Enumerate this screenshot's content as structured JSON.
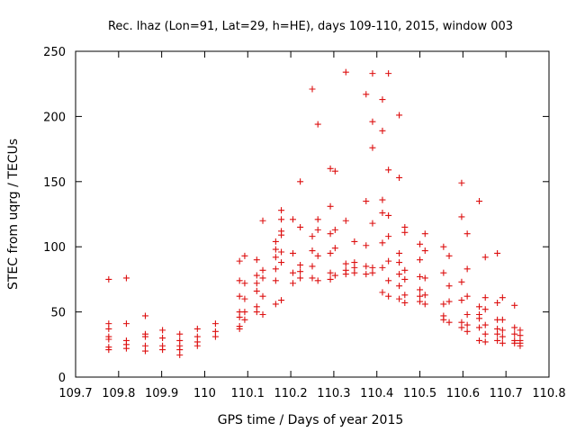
{
  "chart_data": {
    "type": "scatter",
    "title": "Rec. lhaz (Lon=91, Lat=29, h=HE), days 109-110, 2015, window 003",
    "xlabel": "GPS time / Days of year 2015",
    "ylabel": "STEC from uqrg / TECUs",
    "xlim": [
      109.7,
      110.8
    ],
    "ylim": [
      0,
      250
    ],
    "xticks": [
      109.7,
      109.8,
      109.9,
      110,
      110.1,
      110.2,
      110.3,
      110.4,
      110.5,
      110.6,
      110.7,
      110.8
    ],
    "xtick_labels": [
      "109.7",
      "109.8",
      "109.9",
      "110",
      "110.1",
      "110.2",
      "110.3",
      "110.4",
      "110.5",
      "110.6",
      "110.7",
      "110.8"
    ],
    "yticks": [
      0,
      50,
      100,
      150,
      200,
      250
    ],
    "ytick_labels": [
      "0",
      "50",
      "100",
      "150",
      "200",
      "250"
    ],
    "grid": false,
    "legend": "none",
    "marker": "+",
    "color": "#dd1010",
    "series": [
      {
        "points": [
          [
            109.777,
            75
          ],
          [
            109.777,
            41
          ],
          [
            109.777,
            37
          ],
          [
            109.777,
            31
          ],
          [
            109.777,
            29
          ],
          [
            109.777,
            23
          ],
          [
            109.777,
            21
          ],
          [
            109.818,
            76
          ],
          [
            109.818,
            41
          ],
          [
            109.818,
            28
          ],
          [
            109.818,
            25
          ],
          [
            109.818,
            22
          ],
          [
            109.862,
            47
          ],
          [
            109.862,
            33
          ],
          [
            109.862,
            31
          ],
          [
            109.862,
            24
          ],
          [
            109.862,
            20
          ],
          [
            109.902,
            36
          ],
          [
            109.902,
            30
          ],
          [
            109.902,
            24
          ],
          [
            109.902,
            21
          ],
          [
            109.942,
            33
          ],
          [
            109.942,
            28
          ],
          [
            109.942,
            24
          ],
          [
            109.942,
            21
          ],
          [
            109.942,
            17
          ],
          [
            109.983,
            37
          ],
          [
            109.983,
            31
          ],
          [
            109.983,
            27
          ],
          [
            109.983,
            24
          ],
          [
            110.025,
            41
          ],
          [
            110.025,
            35
          ],
          [
            110.025,
            31
          ],
          [
            110.081,
            89
          ],
          [
            110.081,
            74
          ],
          [
            110.081,
            62
          ],
          [
            110.081,
            50
          ],
          [
            110.081,
            46
          ],
          [
            110.081,
            39
          ],
          [
            110.081,
            37
          ],
          [
            110.093,
            93
          ],
          [
            110.093,
            72
          ],
          [
            110.093,
            60
          ],
          [
            110.093,
            50
          ],
          [
            110.093,
            44
          ],
          [
            110.121,
            90
          ],
          [
            110.121,
            78
          ],
          [
            110.121,
            72
          ],
          [
            110.121,
            66
          ],
          [
            110.121,
            54
          ],
          [
            110.121,
            50
          ],
          [
            110.135,
            120
          ],
          [
            110.135,
            82
          ],
          [
            110.135,
            76
          ],
          [
            110.135,
            62
          ],
          [
            110.135,
            48
          ],
          [
            110.165,
            104
          ],
          [
            110.165,
            98
          ],
          [
            110.165,
            92
          ],
          [
            110.165,
            83
          ],
          [
            110.165,
            74
          ],
          [
            110.165,
            56
          ],
          [
            110.178,
            128
          ],
          [
            110.178,
            121
          ],
          [
            110.178,
            112
          ],
          [
            110.178,
            109
          ],
          [
            110.178,
            96
          ],
          [
            110.178,
            88
          ],
          [
            110.178,
            59
          ],
          [
            110.205,
            121
          ],
          [
            110.205,
            95
          ],
          [
            110.205,
            80
          ],
          [
            110.205,
            72
          ],
          [
            110.222,
            150
          ],
          [
            110.222,
            115
          ],
          [
            110.222,
            86
          ],
          [
            110.222,
            81
          ],
          [
            110.222,
            76
          ],
          [
            110.25,
            221
          ],
          [
            110.25,
            108
          ],
          [
            110.25,
            97
          ],
          [
            110.25,
            85
          ],
          [
            110.25,
            76
          ],
          [
            110.263,
            194
          ],
          [
            110.263,
            121
          ],
          [
            110.263,
            113
          ],
          [
            110.263,
            93
          ],
          [
            110.263,
            74
          ],
          [
            110.292,
            160
          ],
          [
            110.292,
            131
          ],
          [
            110.292,
            110
          ],
          [
            110.292,
            95
          ],
          [
            110.292,
            80
          ],
          [
            110.292,
            75
          ],
          [
            110.303,
            158
          ],
          [
            110.303,
            113
          ],
          [
            110.303,
            99
          ],
          [
            110.303,
            78
          ],
          [
            110.328,
            234
          ],
          [
            110.328,
            120
          ],
          [
            110.328,
            87
          ],
          [
            110.328,
            82
          ],
          [
            110.328,
            79
          ],
          [
            110.348,
            104
          ],
          [
            110.348,
            88
          ],
          [
            110.348,
            84
          ],
          [
            110.348,
            80
          ],
          [
            110.375,
            217
          ],
          [
            110.375,
            135
          ],
          [
            110.375,
            101
          ],
          [
            110.375,
            85
          ],
          [
            110.375,
            79
          ],
          [
            110.39,
            233
          ],
          [
            110.39,
            196
          ],
          [
            110.39,
            176
          ],
          [
            110.39,
            118
          ],
          [
            110.39,
            84
          ],
          [
            110.39,
            80
          ],
          [
            110.413,
            213
          ],
          [
            110.413,
            189
          ],
          [
            110.413,
            136
          ],
          [
            110.413,
            126
          ],
          [
            110.413,
            103
          ],
          [
            110.413,
            84
          ],
          [
            110.413,
            65
          ],
          [
            110.427,
            233
          ],
          [
            110.427,
            159
          ],
          [
            110.427,
            124
          ],
          [
            110.427,
            108
          ],
          [
            110.427,
            89
          ],
          [
            110.427,
            74
          ],
          [
            110.427,
            62
          ],
          [
            110.452,
            201
          ],
          [
            110.452,
            153
          ],
          [
            110.452,
            95
          ],
          [
            110.452,
            88
          ],
          [
            110.452,
            79
          ],
          [
            110.452,
            70
          ],
          [
            110.452,
            60
          ],
          [
            110.465,
            115
          ],
          [
            110.465,
            111
          ],
          [
            110.465,
            82
          ],
          [
            110.465,
            75
          ],
          [
            110.465,
            63
          ],
          [
            110.465,
            57
          ],
          [
            110.5,
            102
          ],
          [
            110.5,
            90
          ],
          [
            110.5,
            77
          ],
          [
            110.5,
            67
          ],
          [
            110.5,
            62
          ],
          [
            110.5,
            58
          ],
          [
            110.512,
            110
          ],
          [
            110.512,
            97
          ],
          [
            110.512,
            76
          ],
          [
            110.512,
            63
          ],
          [
            110.512,
            56
          ],
          [
            110.555,
            100
          ],
          [
            110.555,
            80
          ],
          [
            110.555,
            56
          ],
          [
            110.555,
            47
          ],
          [
            110.555,
            44
          ],
          [
            110.568,
            93
          ],
          [
            110.568,
            70
          ],
          [
            110.568,
            58
          ],
          [
            110.568,
            42
          ],
          [
            110.597,
            149
          ],
          [
            110.597,
            123
          ],
          [
            110.597,
            73
          ],
          [
            110.597,
            59
          ],
          [
            110.597,
            42
          ],
          [
            110.597,
            38
          ],
          [
            110.61,
            110
          ],
          [
            110.61,
            83
          ],
          [
            110.61,
            62
          ],
          [
            110.61,
            48
          ],
          [
            110.61,
            40
          ],
          [
            110.61,
            35
          ],
          [
            110.638,
            135
          ],
          [
            110.638,
            54
          ],
          [
            110.638,
            48
          ],
          [
            110.638,
            45
          ],
          [
            110.638,
            38
          ],
          [
            110.638,
            28
          ],
          [
            110.652,
            92
          ],
          [
            110.652,
            61
          ],
          [
            110.652,
            52
          ],
          [
            110.652,
            40
          ],
          [
            110.652,
            33
          ],
          [
            110.652,
            27
          ],
          [
            110.68,
            95
          ],
          [
            110.68,
            57
          ],
          [
            110.68,
            44
          ],
          [
            110.68,
            37
          ],
          [
            110.68,
            33
          ],
          [
            110.68,
            28
          ],
          [
            110.692,
            61
          ],
          [
            110.692,
            44
          ],
          [
            110.692,
            36
          ],
          [
            110.692,
            31
          ],
          [
            110.692,
            26
          ],
          [
            110.72,
            55
          ],
          [
            110.72,
            38
          ],
          [
            110.72,
            33
          ],
          [
            110.72,
            28
          ],
          [
            110.72,
            26
          ],
          [
            110.733,
            36
          ],
          [
            110.733,
            32
          ],
          [
            110.733,
            28
          ],
          [
            110.733,
            26
          ],
          [
            110.733,
            24
          ]
        ]
      }
    ]
  }
}
